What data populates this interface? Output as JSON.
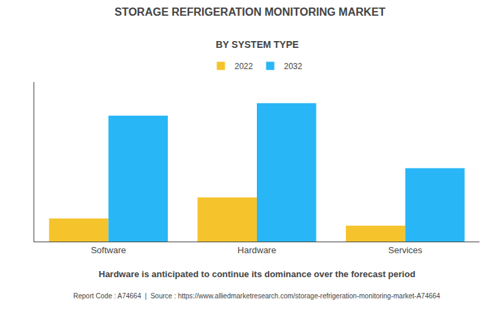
{
  "chart_data": {
    "type": "bar",
    "title": "STORAGE REFRIGERATION MONITORING MARKET",
    "subtitle": "BY SYSTEM TYPE",
    "categories": [
      "Software",
      "Hardware",
      "Services"
    ],
    "series": [
      {
        "name": "2022",
        "color": "#F5C42C",
        "values": [
          0.55,
          1.05,
          0.38
        ]
      },
      {
        "name": "2032",
        "color": "#29B6F6",
        "values": [
          3.0,
          3.3,
          1.75
        ]
      }
    ],
    "ylim": [
      0,
      3.8
    ],
    "grid": false,
    "tick_labels": "x",
    "legend": "top",
    "annotations": [
      "Hardware is anticipated to continue its dominance over the forecast period",
      "Report Code : A74664  |  Source : https://www.alliedmarketresearch.com/storage-refrigeration-monitoring-market-A74664"
    ]
  }
}
